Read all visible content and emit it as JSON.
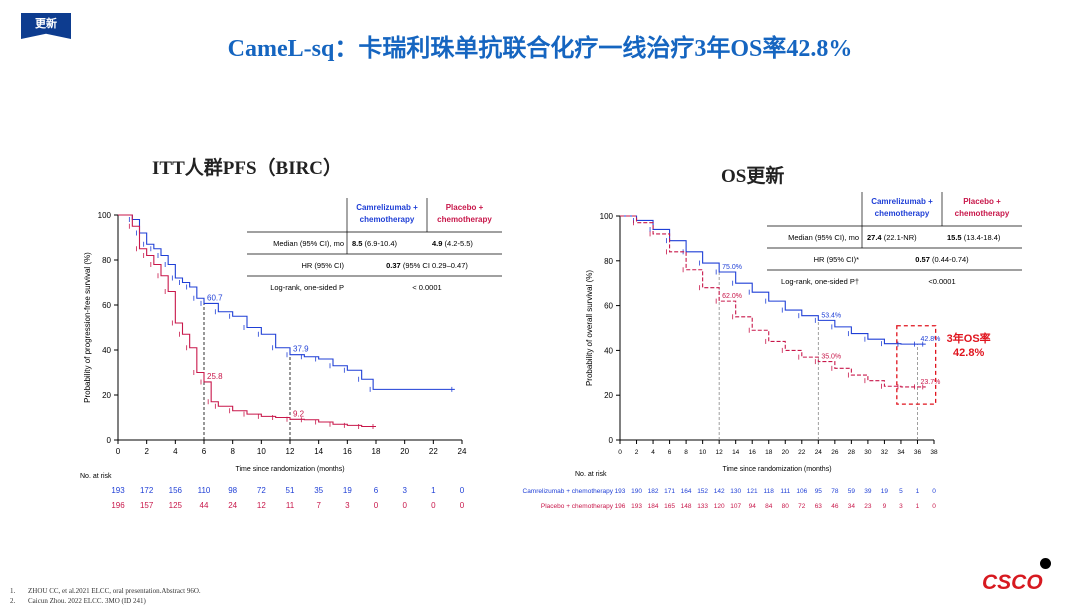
{
  "badge": "更新",
  "title": "CameL-sq：卡瑞利珠单抗联合化疗一线治疗3年OS率42.8%",
  "references": [
    {
      "num": "1.",
      "text": "ZHOU CC, et al.2021 ELCC, oral presentation.Abstract 96O."
    },
    {
      "num": "2.",
      "text": "Caicun Zhou. 2022 ELCC. 3MO (ID 241)"
    }
  ],
  "logo": "CSCO",
  "colors": {
    "camrelizumab": "#1f3fd6",
    "placebo": "#c8174a",
    "title": "#1565c0",
    "highlight": "#e0141e"
  },
  "chart_data": [
    {
      "type": "line",
      "panel_title": "ITT人群PFS（BIRC）",
      "ylabel": "Probability of progression-free survival (%)",
      "xlabel": "Time since randomization (months)",
      "ylim": [
        0,
        100
      ],
      "xlim": [
        0,
        24
      ],
      "x_ticks": [
        "0",
        "2",
        "4",
        "6",
        "8",
        "10",
        "12",
        "14",
        "16",
        "18",
        "20",
        "22",
        "24"
      ],
      "y_ticks": [
        "0",
        "20",
        "40",
        "60",
        "80",
        "100"
      ],
      "table": {
        "col_headers": [
          "Camrelizumab + chemotherapy",
          "Placebo + chemotherapy"
        ],
        "rows": [
          {
            "label": "Median (95% CI), mo",
            "c1_bold": "8.5",
            "c1": " (6.9-10.4)",
            "c2_bold": "4.9",
            "c2": " (4.2-5.5)"
          },
          {
            "label": "HR (95% CI)",
            "span_bold": "0.37",
            "span": " (95% CI 0.29–0.47)"
          },
          {
            "label": "Log-rank, one-sided P",
            "span": "< 0.0001"
          }
        ]
      },
      "annotations": [
        {
          "x": 6,
          "y": 60.7,
          "text": "60.7",
          "series": "camrelizumab"
        },
        {
          "x": 12,
          "y": 37.9,
          "text": "37.9",
          "series": "camrelizumab"
        },
        {
          "x": 6,
          "y": 25.8,
          "text": "25.8",
          "series": "placebo"
        },
        {
          "x": 12,
          "y": 9.2,
          "text": "9.2",
          "series": "placebo"
        }
      ],
      "series": [
        {
          "key": "camrelizumab",
          "points": [
            [
              0,
              100
            ],
            [
              1,
              98
            ],
            [
              1.5,
              92
            ],
            [
              2,
              87
            ],
            [
              2.5,
              85
            ],
            [
              3,
              82
            ],
            [
              3.5,
              78
            ],
            [
              4,
              72
            ],
            [
              4.5,
              70
            ],
            [
              5,
              68
            ],
            [
              5.5,
              63
            ],
            [
              6,
              60.7
            ],
            [
              7,
              57
            ],
            [
              8,
              55
            ],
            [
              9,
              50
            ],
            [
              10,
              47
            ],
            [
              11,
              41
            ],
            [
              12,
              37.9
            ],
            [
              13,
              37
            ],
            [
              14,
              36
            ],
            [
              15,
              33
            ],
            [
              16,
              31
            ],
            [
              17,
              27
            ],
            [
              17.8,
              22.5
            ],
            [
              23.5,
              22.5
            ]
          ]
        },
        {
          "key": "placebo",
          "points": [
            [
              0,
              100
            ],
            [
              1,
              95
            ],
            [
              1.5,
              85
            ],
            [
              2,
              82
            ],
            [
              2.5,
              78
            ],
            [
              3,
              73
            ],
            [
              3.5,
              66
            ],
            [
              4,
              52
            ],
            [
              4.5,
              47
            ],
            [
              5,
              41
            ],
            [
              5.5,
              30
            ],
            [
              6,
              25.8
            ],
            [
              6.5,
              17
            ],
            [
              7,
              15
            ],
            [
              8,
              13
            ],
            [
              9,
              11.5
            ],
            [
              10,
              10.5
            ],
            [
              11,
              10
            ],
            [
              12,
              9.2
            ],
            [
              13,
              9
            ],
            [
              14,
              8
            ],
            [
              15,
              7
            ],
            [
              16,
              6.5
            ],
            [
              17,
              6
            ],
            [
              18,
              6
            ]
          ]
        }
      ],
      "risk_table": {
        "header": "No. at risk",
        "rows": [
          {
            "series": "camrelizumab",
            "values": [
              "193",
              "172",
              "156",
              "110",
              "98",
              "72",
              "51",
              "35",
              "19",
              "6",
              "3",
              "1",
              "0"
            ]
          },
          {
            "series": "placebo",
            "values": [
              "196",
              "157",
              "125",
              "44",
              "24",
              "12",
              "11",
              "7",
              "3",
              "0",
              "0",
              "0",
              "0"
            ]
          }
        ]
      }
    },
    {
      "type": "line",
      "panel_title": "OS更新",
      "ylabel": "Probability of overall survival (%)",
      "xlabel": "Time since randomization (months)",
      "ylim": [
        0,
        100
      ],
      "xlim": [
        0,
        38
      ],
      "x_ticks": [
        "0",
        "2",
        "4",
        "6",
        "8",
        "10",
        "12",
        "14",
        "16",
        "18",
        "20",
        "22",
        "24",
        "26",
        "28",
        "30",
        "32",
        "34",
        "36",
        "38"
      ],
      "y_ticks": [
        "0",
        "20",
        "40",
        "60",
        "80",
        "100"
      ],
      "table": {
        "col_headers": [
          "Camrelizumab + chemotherapy",
          "Placebo + chemotherapy"
        ],
        "rows": [
          {
            "label": "Median (95% CI), mo",
            "c1_bold": "27.4",
            "c1": " (22.1-NR)",
            "c2_bold": "15.5",
            "c2": " (13.4-18.4)"
          },
          {
            "label": "HR (95% CI)*",
            "span_bold": "0.57",
            "span": " (0.44-0.74)"
          },
          {
            "label": "Log-rank, one-sided P†",
            "span": "<0.0001"
          }
        ]
      },
      "annotations": [
        {
          "x": 12,
          "y": 75.0,
          "text": "75.0%",
          "series": "camrelizumab"
        },
        {
          "x": 24,
          "y": 53.4,
          "text": "53.4%",
          "series": "camrelizumab"
        },
        {
          "x": 36,
          "y": 42.8,
          "text": "42.8%",
          "series": "camrelizumab"
        },
        {
          "x": 12,
          "y": 62.0,
          "text": "62.0%",
          "series": "placebo"
        },
        {
          "x": 24,
          "y": 35.0,
          "text": "35.0%",
          "series": "placebo"
        },
        {
          "x": 36,
          "y": 23.7,
          "text": "23.7%",
          "series": "placebo"
        }
      ],
      "highlight_label": [
        "3年OS率",
        "42.8%"
      ],
      "series": [
        {
          "key": "camrelizumab",
          "points": [
            [
              0,
              100
            ],
            [
              2,
              98
            ],
            [
              4,
              94
            ],
            [
              6,
              89
            ],
            [
              8,
              84
            ],
            [
              10,
              79
            ],
            [
              12,
              75.0
            ],
            [
              14,
              70
            ],
            [
              16,
              66
            ],
            [
              18,
              62
            ],
            [
              20,
              58
            ],
            [
              22,
              55.5
            ],
            [
              24,
              53.4
            ],
            [
              26,
              50.5
            ],
            [
              28,
              47.5
            ],
            [
              30,
              45
            ],
            [
              32,
              43
            ],
            [
              34,
              42.8
            ],
            [
              36,
              42.8
            ],
            [
              37,
              42.8
            ]
          ]
        },
        {
          "key": "placebo",
          "points": [
            [
              0,
              100
            ],
            [
              2,
              97
            ],
            [
              4,
              92
            ],
            [
              6,
              84
            ],
            [
              8,
              76
            ],
            [
              10,
              68
            ],
            [
              12,
              62.0
            ],
            [
              14,
              55
            ],
            [
              16,
              49
            ],
            [
              18,
              44
            ],
            [
              20,
              40
            ],
            [
              22,
              37
            ],
            [
              24,
              35.0
            ],
            [
              26,
              32
            ],
            [
              28,
              29
            ],
            [
              30,
              26.5
            ],
            [
              32,
              24
            ],
            [
              34,
              23.7
            ],
            [
              36,
              23.7
            ],
            [
              37,
              23.7
            ]
          ]
        }
      ],
      "risk_table": {
        "header": "No. at risk",
        "rows": [
          {
            "series": "camrelizumab",
            "label": "Camrelizumab + chemotherapy",
            "values": [
              "193",
              "190",
              "182",
              "171",
              "164",
              "152",
              "142",
              "130",
              "121",
              "118",
              "111",
              "106",
              "95",
              "78",
              "59",
              "39",
              "19",
              "5",
              "1",
              "0"
            ]
          },
          {
            "series": "placebo",
            "label": "Placebo + chemotherapy",
            "values": [
              "196",
              "193",
              "184",
              "165",
              "148",
              "133",
              "120",
              "107",
              "94",
              "84",
              "80",
              "72",
              "63",
              "46",
              "34",
              "23",
              "9",
              "3",
              "1",
              "0"
            ]
          }
        ]
      }
    }
  ]
}
